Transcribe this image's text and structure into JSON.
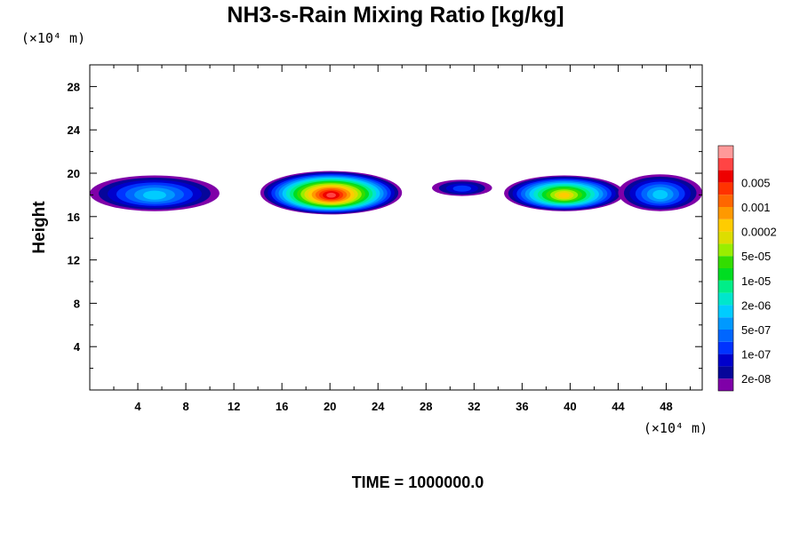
{
  "chart_data": {
    "type": "heatmap",
    "title": "NH3-s-Rain Mixing Ratio [kg/kg]",
    "y_unit_label": "(×10⁴ m)",
    "x_unit_label": "(×10⁴ m)",
    "ylabel": "Height",
    "xlabel": "",
    "time_label": "TIME = 1000000.0",
    "xlim": [
      0,
      51
    ],
    "ylim": [
      0,
      30
    ],
    "x_ticks": [
      4,
      8,
      12,
      16,
      20,
      24,
      28,
      32,
      36,
      40,
      44,
      48
    ],
    "x_tick_labels": [
      "4",
      "8",
      "12",
      "16",
      "20",
      "24",
      "28",
      "32",
      "36",
      "40",
      "44",
      "48"
    ],
    "y_ticks": [
      4,
      8,
      12,
      16,
      20,
      24,
      28
    ],
    "y_tick_labels": [
      "4",
      "8",
      "12",
      "16",
      "20",
      "24",
      "28"
    ],
    "colorbar": {
      "colors": [
        "#7f00a8",
        "#06069a",
        "#0000cc",
        "#0033ff",
        "#0066ff",
        "#0099ff",
        "#00ccff",
        "#00e6cc",
        "#00ee88",
        "#00dd22",
        "#33dd00",
        "#99ee00",
        "#dddd00",
        "#ffcc00",
        "#ff9900",
        "#ff6600",
        "#ff3300",
        "#ee0000",
        "#ff4444",
        "#ff9999"
      ],
      "labels": [
        "2e-08",
        "1e-07",
        "5e-07",
        "2e-06",
        "1e-05",
        "5e-05",
        "0.0002",
        "0.001",
        "0.005"
      ]
    },
    "cloud_layers": [
      {
        "x0": 0.0,
        "x1": 10.8,
        "y0": 16.5,
        "y1": 19.8,
        "peak_level": 6
      },
      {
        "x0": 14.2,
        "x1": 26.0,
        "y0": 16.2,
        "y1": 20.2,
        "peak_level": 18
      },
      {
        "x0": 28.5,
        "x1": 33.5,
        "y0": 17.9,
        "y1": 19.4,
        "peak_level": 3
      },
      {
        "x0": 34.5,
        "x1": 44.5,
        "y0": 16.5,
        "y1": 19.8,
        "peak_level": 13
      },
      {
        "x0": 44.0,
        "x1": 51.0,
        "y0": 16.5,
        "y1": 19.9,
        "peak_level": 6
      }
    ]
  }
}
